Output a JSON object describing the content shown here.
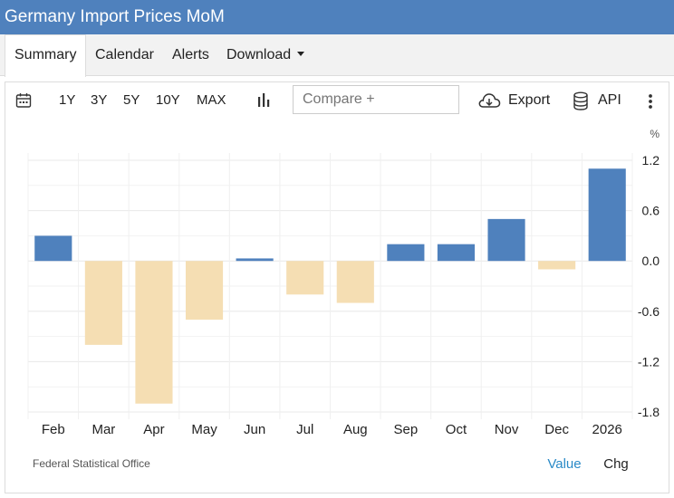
{
  "header": {
    "title": "Germany Import Prices MoM",
    "bg_color": "#4f81bd"
  },
  "tabs": [
    {
      "label": "Summary",
      "active": true
    },
    {
      "label": "Calendar",
      "active": false
    },
    {
      "label": "Alerts",
      "active": false
    },
    {
      "label": "Download",
      "active": false,
      "dropdown": true
    }
  ],
  "toolbar": {
    "ranges": [
      "1Y",
      "3Y",
      "5Y",
      "10Y",
      "MAX"
    ],
    "compare_placeholder": "Compare +",
    "export_label": "Export",
    "api_label": "API",
    "icons": [
      "calendar-icon",
      "bar-chart-icon",
      "cloud-download-icon",
      "database-icon",
      "more-vertical-icon"
    ]
  },
  "chart_data": {
    "type": "bar",
    "categories": [
      "Feb",
      "Mar",
      "Apr",
      "May",
      "Jun",
      "Jul",
      "Aug",
      "Sep",
      "Oct",
      "Nov",
      "Dec",
      "2026"
    ],
    "values": [
      0.3,
      -1.0,
      -1.7,
      -0.7,
      0.03,
      -0.4,
      -0.5,
      0.2,
      0.2,
      0.5,
      -0.1,
      1.1
    ],
    "unit": "%",
    "yticks": [
      1.2,
      0.6,
      0.0,
      -0.6,
      -1.2,
      -1.8
    ],
    "ytick_labels": [
      "1.2",
      "0.6",
      "0.0",
      "-0.6",
      "-1.2",
      "-1.8"
    ],
    "ylim": [
      -1.8,
      1.2
    ],
    "grid": true,
    "colors": {
      "positive": "#4f81bd",
      "negative": "#f5deb3"
    },
    "source": "Federal Statistical Office"
  },
  "footer": {
    "value_label": "Value",
    "chg_label": "Chg",
    "value_color": "#2a8ac7"
  }
}
